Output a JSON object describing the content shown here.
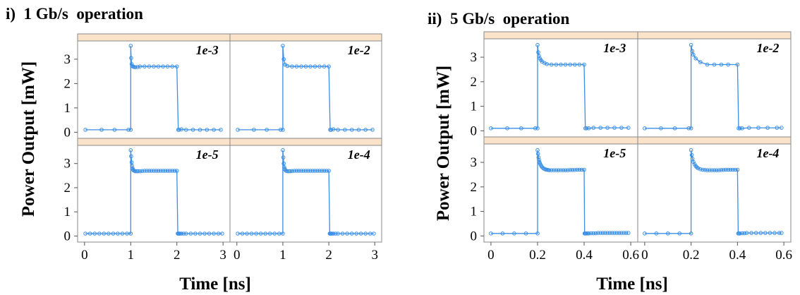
{
  "chart_data": [
    {
      "type": "line",
      "title": "i)  1 Gb/s  operation",
      "xlabel": "Time [ns]",
      "ylabel": "Power Output [mW]",
      "xlim": [
        -0.15,
        3.15
      ],
      "ylim": [
        -0.25,
        3.75
      ],
      "xticks": [
        0,
        1,
        2,
        3
      ],
      "xtick_labels": [
        "0",
        "1",
        "2",
        "3"
      ],
      "yticks": [
        0,
        1,
        2,
        3
      ],
      "ytick_labels": [
        "0",
        "1",
        "2",
        "3"
      ],
      "grid": false,
      "layout": "2x2 facets",
      "facets": [
        {
          "label": "1e-3",
          "x": [
            0.02,
            0.37,
            0.65,
            0.95,
            1.0,
            1.0,
            1.01,
            1.02,
            1.03,
            1.05,
            1.07,
            1.1,
            1.15,
            1.2,
            1.3,
            1.4,
            1.5,
            1.6,
            1.7,
            1.8,
            1.9,
            2.0,
            2.03,
            2.05,
            2.1,
            2.2,
            2.35,
            2.5,
            2.65,
            2.8,
            2.95
          ],
          "y": [
            0.1,
            0.1,
            0.1,
            0.1,
            0.1,
            3.55,
            3.05,
            2.8,
            2.72,
            2.7,
            2.68,
            2.67,
            2.68,
            2.7,
            2.7,
            2.7,
            2.7,
            2.7,
            2.7,
            2.7,
            2.7,
            2.7,
            0.1,
            0.1,
            0.12,
            0.1,
            0.1,
            0.1,
            0.1,
            0.1,
            0.1
          ]
        },
        {
          "label": "1e-2",
          "x": [
            0.02,
            0.37,
            0.65,
            0.95,
            1.0,
            1.0,
            1.02,
            1.05,
            1.1,
            1.2,
            1.3,
            1.4,
            1.5,
            1.6,
            1.7,
            1.8,
            1.9,
            2.0,
            2.03,
            2.05,
            2.1,
            2.2,
            2.35,
            2.5,
            2.65,
            2.8,
            2.95
          ],
          "y": [
            0.1,
            0.1,
            0.1,
            0.1,
            0.1,
            3.55,
            3.0,
            2.78,
            2.72,
            2.7,
            2.7,
            2.7,
            2.7,
            2.7,
            2.7,
            2.7,
            2.7,
            2.7,
            0.1,
            0.1,
            0.12,
            0.1,
            0.1,
            0.1,
            0.1,
            0.1,
            0.1
          ]
        },
        {
          "label": "1e-5",
          "x": [
            0.02,
            0.12,
            0.22,
            0.32,
            0.42,
            0.52,
            0.62,
            0.72,
            0.82,
            0.92,
            1.0,
            1.0,
            1.01,
            1.02,
            1.03,
            1.04,
            1.05,
            1.06,
            1.08,
            1.1,
            1.13,
            1.16,
            1.2,
            1.25,
            1.3,
            1.35,
            1.4,
            1.45,
            1.5,
            1.55,
            1.6,
            1.65,
            1.7,
            1.75,
            1.8,
            1.85,
            1.9,
            1.95,
            2.0,
            2.02,
            2.03,
            2.04,
            2.05,
            2.07,
            2.1,
            2.15,
            2.2,
            2.3,
            2.4,
            2.5,
            2.6,
            2.7,
            2.8,
            2.9,
            2.98
          ],
          "y": [
            0.1,
            0.1,
            0.1,
            0.1,
            0.1,
            0.1,
            0.1,
            0.1,
            0.1,
            0.1,
            0.1,
            3.55,
            3.3,
            3.05,
            2.9,
            2.8,
            2.75,
            2.72,
            2.7,
            2.68,
            2.68,
            2.68,
            2.68,
            2.69,
            2.7,
            2.7,
            2.7,
            2.7,
            2.7,
            2.7,
            2.7,
            2.7,
            2.7,
            2.7,
            2.7,
            2.7,
            2.7,
            2.7,
            2.7,
            0.1,
            0.1,
            0.1,
            0.1,
            0.1,
            0.1,
            0.1,
            0.1,
            0.1,
            0.1,
            0.1,
            0.1,
            0.1,
            0.1,
            0.1,
            0.1
          ]
        },
        {
          "label": "1e-4",
          "x": [
            0.02,
            0.12,
            0.22,
            0.32,
            0.42,
            0.52,
            0.62,
            0.72,
            0.82,
            0.92,
            1.0,
            1.0,
            1.01,
            1.02,
            1.03,
            1.04,
            1.05,
            1.07,
            1.1,
            1.13,
            1.16,
            1.2,
            1.25,
            1.3,
            1.35,
            1.4,
            1.45,
            1.5,
            1.55,
            1.6,
            1.65,
            1.7,
            1.75,
            1.8,
            1.85,
            1.9,
            1.95,
            2.0,
            2.02,
            2.03,
            2.04,
            2.05,
            2.07,
            2.1,
            2.15,
            2.2,
            2.3,
            2.4,
            2.5,
            2.6,
            2.7,
            2.8,
            2.9,
            2.98
          ],
          "y": [
            0.1,
            0.1,
            0.1,
            0.1,
            0.1,
            0.1,
            0.1,
            0.1,
            0.1,
            0.1,
            0.1,
            3.55,
            3.25,
            3.0,
            2.85,
            2.78,
            2.74,
            2.7,
            2.68,
            2.68,
            2.68,
            2.69,
            2.7,
            2.7,
            2.7,
            2.7,
            2.7,
            2.7,
            2.7,
            2.7,
            2.7,
            2.7,
            2.7,
            2.7,
            2.7,
            2.7,
            2.7,
            2.7,
            0.1,
            0.1,
            0.1,
            0.1,
            0.1,
            0.1,
            0.1,
            0.1,
            0.1,
            0.1,
            0.1,
            0.1,
            0.1,
            0.1,
            0.1,
            0.1
          ]
        }
      ]
    },
    {
      "type": "line",
      "title": "ii)  5 Gb/s  operation",
      "xlabel": "Time [ns]",
      "ylabel": "Power Output [mW]",
      "xlim": [
        -0.03,
        0.63
      ],
      "ylim": [
        -0.25,
        3.75
      ],
      "xticks": [
        0,
        0.2,
        0.4,
        0.6
      ],
      "xtick_labels": [
        "0",
        "0.2",
        "0.4",
        "0.6"
      ],
      "yticks": [
        0,
        1,
        2,
        3
      ],
      "ytick_labels": [
        "0",
        "1",
        "2",
        "3"
      ],
      "grid": false,
      "layout": "2x2 facets",
      "facets": [
        {
          "label": "1e-3",
          "x": [
            0.0,
            0.07,
            0.13,
            0.19,
            0.2,
            0.2,
            0.203,
            0.206,
            0.21,
            0.215,
            0.22,
            0.23,
            0.24,
            0.26,
            0.28,
            0.3,
            0.32,
            0.34,
            0.36,
            0.38,
            0.4,
            0.405,
            0.41,
            0.42,
            0.44,
            0.47,
            0.5,
            0.53,
            0.56,
            0.59
          ],
          "y": [
            0.1,
            0.1,
            0.1,
            0.1,
            0.1,
            3.5,
            3.2,
            3.05,
            2.95,
            2.88,
            2.82,
            2.76,
            2.72,
            2.7,
            2.7,
            2.7,
            2.7,
            2.7,
            2.7,
            2.7,
            2.7,
            0.1,
            0.1,
            0.1,
            0.12,
            0.12,
            0.12,
            0.12,
            0.12,
            0.12
          ]
        },
        {
          "label": "1e-2",
          "x": [
            0.0,
            0.07,
            0.13,
            0.19,
            0.2,
            0.2,
            0.205,
            0.21,
            0.22,
            0.24,
            0.27,
            0.3,
            0.33,
            0.36,
            0.4,
            0.405,
            0.41,
            0.42,
            0.45,
            0.49,
            0.53,
            0.57,
            0.59
          ],
          "y": [
            0.1,
            0.1,
            0.1,
            0.1,
            0.1,
            3.5,
            3.25,
            3.1,
            2.95,
            2.8,
            2.7,
            2.7,
            2.7,
            2.7,
            2.7,
            0.1,
            0.1,
            0.1,
            0.12,
            0.12,
            0.12,
            0.12,
            0.12
          ]
        },
        {
          "label": "1e-5",
          "x": [
            0.0,
            0.05,
            0.1,
            0.15,
            0.2,
            0.2,
            0.202,
            0.204,
            0.206,
            0.208,
            0.21,
            0.213,
            0.216,
            0.22,
            0.225,
            0.23,
            0.235,
            0.24,
            0.245,
            0.25,
            0.26,
            0.27,
            0.28,
            0.29,
            0.3,
            0.31,
            0.32,
            0.33,
            0.34,
            0.35,
            0.36,
            0.37,
            0.38,
            0.39,
            0.4,
            0.402,
            0.404,
            0.406,
            0.41,
            0.415,
            0.42,
            0.43,
            0.44,
            0.45,
            0.46,
            0.47,
            0.48,
            0.49,
            0.5,
            0.51,
            0.52,
            0.53,
            0.54,
            0.55,
            0.56,
            0.57,
            0.58,
            0.59
          ],
          "y": [
            0.1,
            0.1,
            0.1,
            0.1,
            0.1,
            3.5,
            3.35,
            3.2,
            3.1,
            3.02,
            2.96,
            2.9,
            2.85,
            2.8,
            2.76,
            2.73,
            2.71,
            2.7,
            2.69,
            2.68,
            2.68,
            2.68,
            2.68,
            2.68,
            2.68,
            2.68,
            2.68,
            2.68,
            2.69,
            2.69,
            2.69,
            2.7,
            2.7,
            2.7,
            2.7,
            0.1,
            0.1,
            0.1,
            0.1,
            0.1,
            0.1,
            0.11,
            0.11,
            0.11,
            0.12,
            0.12,
            0.12,
            0.12,
            0.12,
            0.12,
            0.12,
            0.12,
            0.12,
            0.12,
            0.12,
            0.12,
            0.12,
            0.12
          ]
        },
        {
          "label": "1e-4",
          "x": [
            0.0,
            0.05,
            0.1,
            0.15,
            0.2,
            0.2,
            0.203,
            0.206,
            0.21,
            0.215,
            0.22,
            0.225,
            0.23,
            0.24,
            0.25,
            0.26,
            0.27,
            0.28,
            0.29,
            0.3,
            0.31,
            0.32,
            0.33,
            0.34,
            0.35,
            0.36,
            0.37,
            0.38,
            0.39,
            0.4,
            0.403,
            0.406,
            0.41,
            0.42,
            0.43,
            0.44,
            0.46,
            0.48,
            0.5,
            0.52,
            0.54,
            0.56,
            0.58,
            0.59
          ],
          "y": [
            0.1,
            0.1,
            0.1,
            0.1,
            0.1,
            3.5,
            3.3,
            3.15,
            3.02,
            2.92,
            2.85,
            2.8,
            2.76,
            2.72,
            2.7,
            2.69,
            2.68,
            2.68,
            2.68,
            2.68,
            2.68,
            2.68,
            2.69,
            2.69,
            2.7,
            2.7,
            2.7,
            2.7,
            2.7,
            2.7,
            0.1,
            0.1,
            0.1,
            0.11,
            0.11,
            0.12,
            0.12,
            0.12,
            0.12,
            0.12,
            0.12,
            0.12,
            0.12,
            0.12
          ]
        }
      ]
    }
  ]
}
